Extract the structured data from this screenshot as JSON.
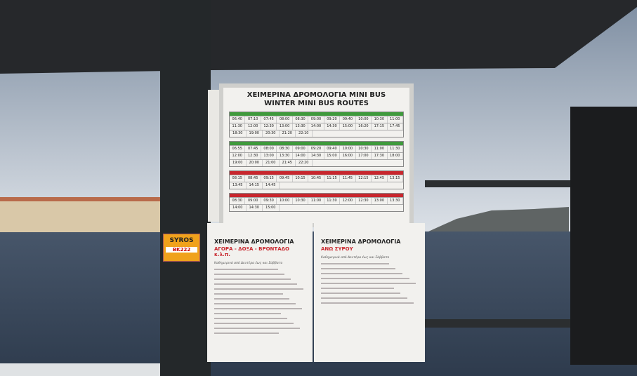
{
  "top_sign": {
    "title": "ΧΕΙΜΕΡΙΝΑ ΔΡΟΜΟΛΟΓΙΑ MINI BUS",
    "subtitle": "WINTER MINI BUS ROUTES",
    "tables": [
      {
        "color": "#3f9a3c",
        "rows": [
          [
            "06:40",
            "07:10",
            "07:45",
            "08:00",
            "08:30",
            "09:00",
            "09:20",
            "09:40",
            "10:00",
            "10:30",
            "11:00"
          ],
          [
            "11:30",
            "12:00",
            "12:30",
            "13:00",
            "13:30",
            "14:00",
            "14:30",
            "15:00",
            "16:20",
            "17:15",
            "17:45"
          ],
          [
            "18:30",
            "19:00",
            "20:30",
            "21:20",
            "22:10"
          ]
        ]
      },
      {
        "color": "#3f9a3c",
        "rows": [
          [
            "06:55",
            "07:45",
            "08:00",
            "08:30",
            "09:00",
            "09:20",
            "09:40",
            "10:00",
            "10:30",
            "11:00",
            "11:30"
          ],
          [
            "12:00",
            "12:30",
            "13:00",
            "13:30",
            "14:00",
            "14:30",
            "15:00",
            "16:00",
            "17:00",
            "17:30",
            "18:00"
          ],
          [
            "19:00",
            "20:00",
            "21:00",
            "21:45",
            "22:20"
          ]
        ]
      },
      {
        "color": "#c8262d",
        "rows": [
          [
            "08:15",
            "08:45",
            "09:15",
            "09:45",
            "10:15",
            "10:45",
            "11:15",
            "11:45",
            "12:15",
            "12:45",
            "13:15"
          ],
          [
            "13:45",
            "14:15",
            "14:45"
          ]
        ]
      },
      {
        "color": "#c8262d",
        "rows": [
          [
            "08:30",
            "09:00",
            "09:30",
            "10:00",
            "10:30",
            "11:00",
            "11:30",
            "12:00",
            "12:30",
            "13:00",
            "13:30"
          ],
          [
            "14:00",
            "14:30",
            "15:00"
          ]
        ]
      }
    ]
  },
  "left_sign": {
    "title": "ΧΕΙΜΕΡΙΝΑ ΔΡΟΜΟΛΟΓΙΑ",
    "route": "ΑΓΟΡΑ - ΔΟΞΑ - ΒΡΟΝΤΑΔΟ κ.λ.π.",
    "note": "Καθημερινά από Δευτέρα έως και Σάββατο"
  },
  "right_sign": {
    "title": "ΧΕΙΜΕΡΙΝΑ ΔΡΟΜΟΛΟΓΙΑ",
    "route": "ΑΝΩ ΣΥΡΟΥ",
    "note": "Καθημερινά από Δευτέρα έως και Σάββατο"
  },
  "sticker": {
    "brand": "SYROS",
    "code": "BK222"
  }
}
